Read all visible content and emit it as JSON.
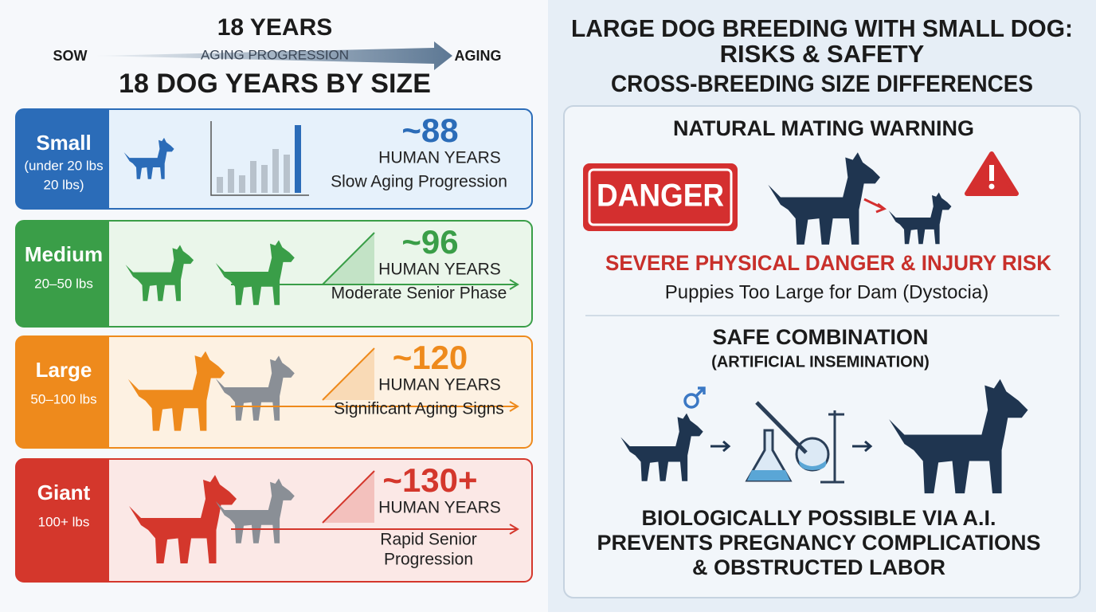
{
  "left": {
    "header": {
      "top": "18 YEARS",
      "start": "SOW",
      "arrow": "AGING PROGRESSION",
      "end": "AGING",
      "title": "18 DOG YEARS BY SIZE"
    },
    "rows": [
      {
        "size": "Small",
        "weight": [
          "(under 20 lbs",
          "20 lbs)"
        ],
        "value": "~88",
        "unit": "HUMAN YEARS",
        "note": [
          "Slow Aging Progression"
        ],
        "color": "#2b6cb8",
        "tint": "#e6f1fb"
      },
      {
        "size": "Medium",
        "weight": [
          "20–50 lbs"
        ],
        "value": "~96",
        "unit": "HUMAN YEARS",
        "note": [
          "Moderate Senior Phase"
        ],
        "color": "#3a9e48",
        "tint": "#eaf6ea"
      },
      {
        "size": "Large",
        "weight": [
          "50–100 lbs"
        ],
        "value": "~120",
        "unit": "HUMAN YEARS",
        "note": [
          "Significant Aging Signs"
        ],
        "color": "#ee8a1c",
        "tint": "#fdf1e2"
      },
      {
        "size": "Giant",
        "weight": [
          "100+ lbs"
        ],
        "value": "~130+",
        "unit": "HUMAN YEARS",
        "note": [
          "Rapid Senior",
          "Progression"
        ],
        "color": "#d4372c",
        "tint": "#fbe8e6"
      }
    ]
  },
  "right": {
    "title": [
      "LARGE DOG BREEDING WITH SMALL DOG:",
      "RISKS & SAFETY"
    ],
    "subtitle": "CROSS-BREEDING SIZE DIFFERENCES",
    "warning": {
      "heading": "NATURAL MATING WARNING",
      "badge": "DANGER",
      "risk": "SEVERE PHYSICAL DANGER & INJURY RISK",
      "detail": "Puppies Too Large for Dam (Dystocia)"
    },
    "safe": {
      "heading": "SAFE COMBINATION",
      "method": "(ARTIFICIAL INSEMINATION)",
      "lines": [
        "BIOLOGICALLY POSSIBLE VIA A.I.",
        "PREVENTS PREGNANCY COMPLICATIONS",
        "& OBSTRUCTED LABOR"
      ]
    }
  }
}
